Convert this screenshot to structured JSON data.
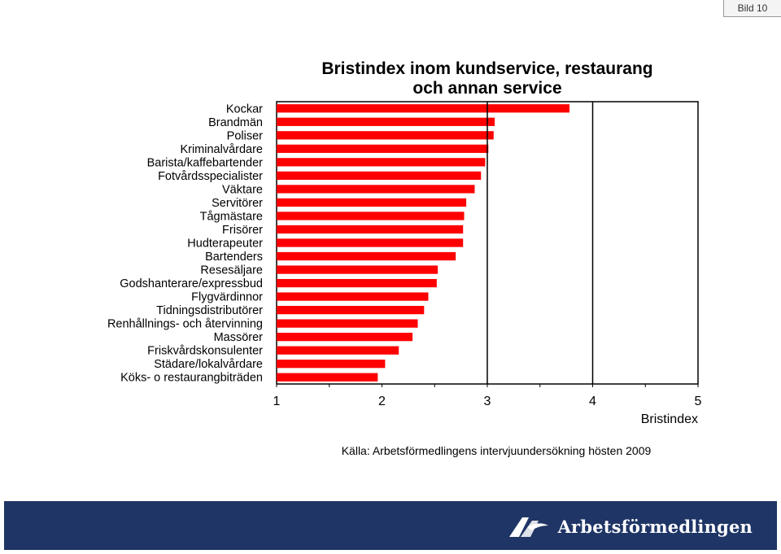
{
  "slide": {
    "label": "Bild 10"
  },
  "source": "Källa: Arbetsförmedlingens intervjuundersökning hösten 2009",
  "logo": {
    "name": "Arbetsförmedlingen"
  },
  "colors": {
    "bar": "#ff0000",
    "footer": "#1f3566"
  },
  "chart_data": {
    "type": "bar",
    "orientation": "horizontal",
    "title": "Bristindex inom kundservice, restaurang och annan service",
    "title_lines": [
      "Bristindex inom kundservice, restaurang",
      "och annan service"
    ],
    "xlabel": "Bristindex",
    "ylabel": "",
    "xlim": [
      1,
      5
    ],
    "xticks": [
      "1",
      "2",
      "3",
      "4",
      "5"
    ],
    "grid": "vertical lines at 3 and 4",
    "categories": [
      "Kockar",
      "Brandmän",
      "Poliser",
      "Kriminalvårdare",
      "Barista/kaffebartender",
      "Fotvårdsspecialister",
      "Väktare",
      "Servitörer",
      "Tågmästare",
      "Frisörer",
      "Hudterapeuter",
      "Bartenders",
      "Resesäljare",
      "Godshanterare/expressbud",
      "Flygvärdinnor",
      "Tidningsdistributörer",
      "Renhållnings- och återvinning",
      "Massörer",
      "Friskvårdskonsulenter",
      "Städare/lokalvårdare",
      "Köks- o restaurangbiträden"
    ],
    "values": [
      3.78,
      3.07,
      3.06,
      3.01,
      2.98,
      2.94,
      2.88,
      2.8,
      2.78,
      2.77,
      2.77,
      2.7,
      2.53,
      2.52,
      2.44,
      2.4,
      2.34,
      2.29,
      2.16,
      2.03,
      1.96
    ]
  }
}
